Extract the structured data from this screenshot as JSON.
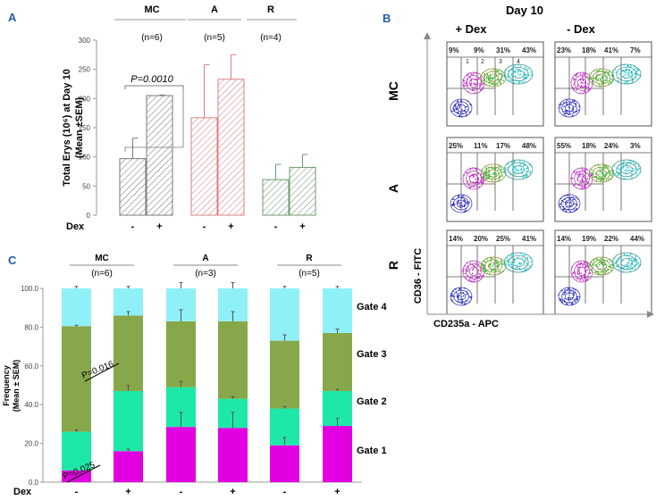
{
  "panels": {
    "a_label": "A",
    "b_label": "B",
    "c_label": "C"
  },
  "groups": [
    {
      "name": "MC",
      "n_a": "(n=6)",
      "n_c": "(n=6)"
    },
    {
      "name": "A",
      "n_a": "(n=5)",
      "n_c": "(n=3)"
    },
    {
      "name": "R",
      "n_a": "(n=4)",
      "n_c": "(n=5)"
    }
  ],
  "dex_label": "Dex",
  "dex_conditions": [
    "-",
    "+"
  ],
  "colors": {
    "panel_label": "#1f5fa8",
    "mc": "#7a7a7a",
    "a": "#d98080",
    "r": "#6f9a6f",
    "gate1": "#e000e0",
    "gate2": "#1ee8a8",
    "gate3": "#86a84a",
    "gate4": "#8ff0f8"
  },
  "chart_data": [
    {
      "id": "panel-a",
      "type": "bar",
      "title": "",
      "ylabel_line1": "Total Erys (10⁶) at Day 10",
      "ylabel_line2": "(Mean ±SEM)",
      "ylim": [
        0,
        300
      ],
      "yticks": [
        0,
        50,
        100,
        150,
        200,
        250,
        300
      ],
      "categories": [
        "MC -",
        "MC +",
        "A -",
        "A +",
        "R -",
        "R +"
      ],
      "values": [
        97,
        205,
        167,
        233,
        61,
        82
      ],
      "errors_upper": [
        132,
        206,
        258,
        275,
        87,
        104
      ],
      "annotation": "P=0.0010"
    },
    {
      "id": "panel-c",
      "type": "bar",
      "stacked": true,
      "ylabel_line1": "Frequency",
      "ylabel_line2": "(Mean ± SEM)",
      "ylim": [
        0,
        100
      ],
      "yticks": [
        "0.0",
        "20.0",
        "40.0",
        "60.0",
        "80.0",
        "100.0"
      ],
      "categories": [
        "MC -",
        "MC +",
        "A -",
        "A +",
        "R -",
        "R +"
      ],
      "series": [
        {
          "name": "Gate 1",
          "cumulative": [
            6,
            16,
            28.5,
            28,
            19,
            29
          ],
          "err_top": [
            null,
            17,
            36,
            36,
            23,
            33
          ]
        },
        {
          "name": "Gate 2",
          "cumulative": [
            26,
            47,
            49,
            43,
            38,
            47
          ],
          "err_top": [
            27,
            50,
            52,
            44,
            39,
            48
          ]
        },
        {
          "name": "Gate 3",
          "cumulative": [
            80.5,
            86,
            83,
            83,
            73,
            77
          ],
          "err_top": [
            81,
            88,
            89,
            88,
            76,
            79
          ]
        },
        {
          "name": "Gate 4",
          "cumulative": [
            100,
            100,
            100,
            100,
            100,
            100
          ],
          "err_top": [
            101,
            101,
            103,
            103,
            101,
            101
          ]
        }
      ],
      "annotations": [
        "P=0.016",
        "P=0.025"
      ]
    }
  ],
  "flow": {
    "title": "Day 10",
    "col_headers": [
      "+ Dex",
      "- Dex"
    ],
    "row_labels": [
      "MC",
      "A",
      "R"
    ],
    "x_axis_label": "CD235a - APC",
    "y_axis_label": "CD36 - FITC",
    "plots": [
      {
        "id": "mc-plus",
        "row": 0,
        "col": 0,
        "percents": [
          "9%",
          "9%",
          "31%",
          "43%"
        ],
        "gate_numbers": [
          "1",
          "2",
          "3",
          "4"
        ]
      },
      {
        "id": "mc-minus",
        "row": 0,
        "col": 1,
        "percents": [
          "23%",
          "18%",
          "41%",
          "7%"
        ]
      },
      {
        "id": "a-plus",
        "row": 1,
        "col": 0,
        "percents": [
          "25%",
          "11%",
          "17%",
          "48%"
        ]
      },
      {
        "id": "a-minus",
        "row": 1,
        "col": 1,
        "percents": [
          "55%",
          "18%",
          "24%",
          "3%"
        ]
      },
      {
        "id": "r-plus",
        "row": 2,
        "col": 0,
        "percents": [
          "14%",
          "20%",
          "25%",
          "41%"
        ]
      },
      {
        "id": "r-minus",
        "row": 2,
        "col": 1,
        "percents": [
          "14%",
          "19%",
          "22%",
          "44%"
        ]
      }
    ]
  }
}
